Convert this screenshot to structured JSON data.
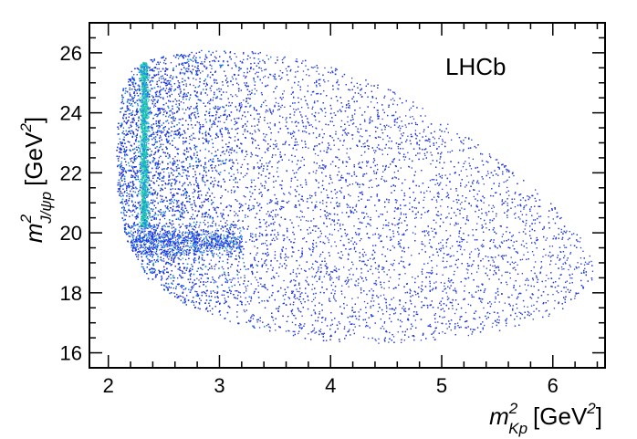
{
  "chart_data": {
    "type": "scatter",
    "title": "",
    "experiment_label": "LHCb",
    "xaxis": {
      "symbol": "m",
      "superscript": "2",
      "subscript": "Kp",
      "unit_open": "[GeV",
      "unit_power": "2",
      "unit_close": "]",
      "range": [
        1.83,
        6.47
      ],
      "ticks": [
        "2",
        "3",
        "4",
        "5",
        "6"
      ],
      "tick_values": [
        2,
        3,
        4,
        5,
        6
      ]
    },
    "yaxis": {
      "symbol": "m",
      "superscript": "2",
      "subscript": "J/ψp",
      "unit_open": "[GeV",
      "unit_power": "2",
      "unit_close": "]",
      "range": [
        15.5,
        27.0
      ],
      "ticks": [
        "16",
        "18",
        "20",
        "22",
        "24",
        "26"
      ],
      "tick_values": [
        16,
        18,
        20,
        22,
        24,
        26
      ]
    },
    "grid": false,
    "colors": {
      "low_density": "#1f35e0",
      "mid_density": "#1f8fe8",
      "high_density": "#22d8a0"
    },
    "dalitz_boundary": [
      {
        "x": 2.08,
        "y": 23.6
      },
      {
        "x": 2.12,
        "y": 24.8
      },
      {
        "x": 2.2,
        "y": 25.4
      },
      {
        "x": 2.35,
        "y": 25.8
      },
      {
        "x": 2.8,
        "y": 26.1
      },
      {
        "x": 3.4,
        "y": 26.05
      },
      {
        "x": 4.0,
        "y": 25.6
      },
      {
        "x": 4.6,
        "y": 24.7
      },
      {
        "x": 5.2,
        "y": 23.3
      },
      {
        "x": 5.7,
        "y": 21.9
      },
      {
        "x": 6.1,
        "y": 20.6
      },
      {
        "x": 6.35,
        "y": 19.3
      },
      {
        "x": 6.36,
        "y": 18.4
      },
      {
        "x": 6.1,
        "y": 17.4
      },
      {
        "x": 5.6,
        "y": 16.8
      },
      {
        "x": 5.0,
        "y": 16.45
      },
      {
        "x": 4.4,
        "y": 16.3
      },
      {
        "x": 3.8,
        "y": 16.45
      },
      {
        "x": 3.2,
        "y": 16.9
      },
      {
        "x": 2.7,
        "y": 17.6
      },
      {
        "x": 2.35,
        "y": 18.5
      },
      {
        "x": 2.15,
        "y": 19.8
      },
      {
        "x": 2.08,
        "y": 21.4
      },
      {
        "x": 2.07,
        "y": 22.6
      }
    ],
    "resonance_bands": [
      {
        "x_center": 2.32,
        "x_width": 0.035,
        "y_range": [
          20.2,
          25.7
        ],
        "description": "vertical band"
      },
      {
        "y_center": 19.7,
        "y_width": 0.45,
        "x_range": [
          2.2,
          3.2
        ],
        "description": "horizontal band"
      }
    ]
  }
}
